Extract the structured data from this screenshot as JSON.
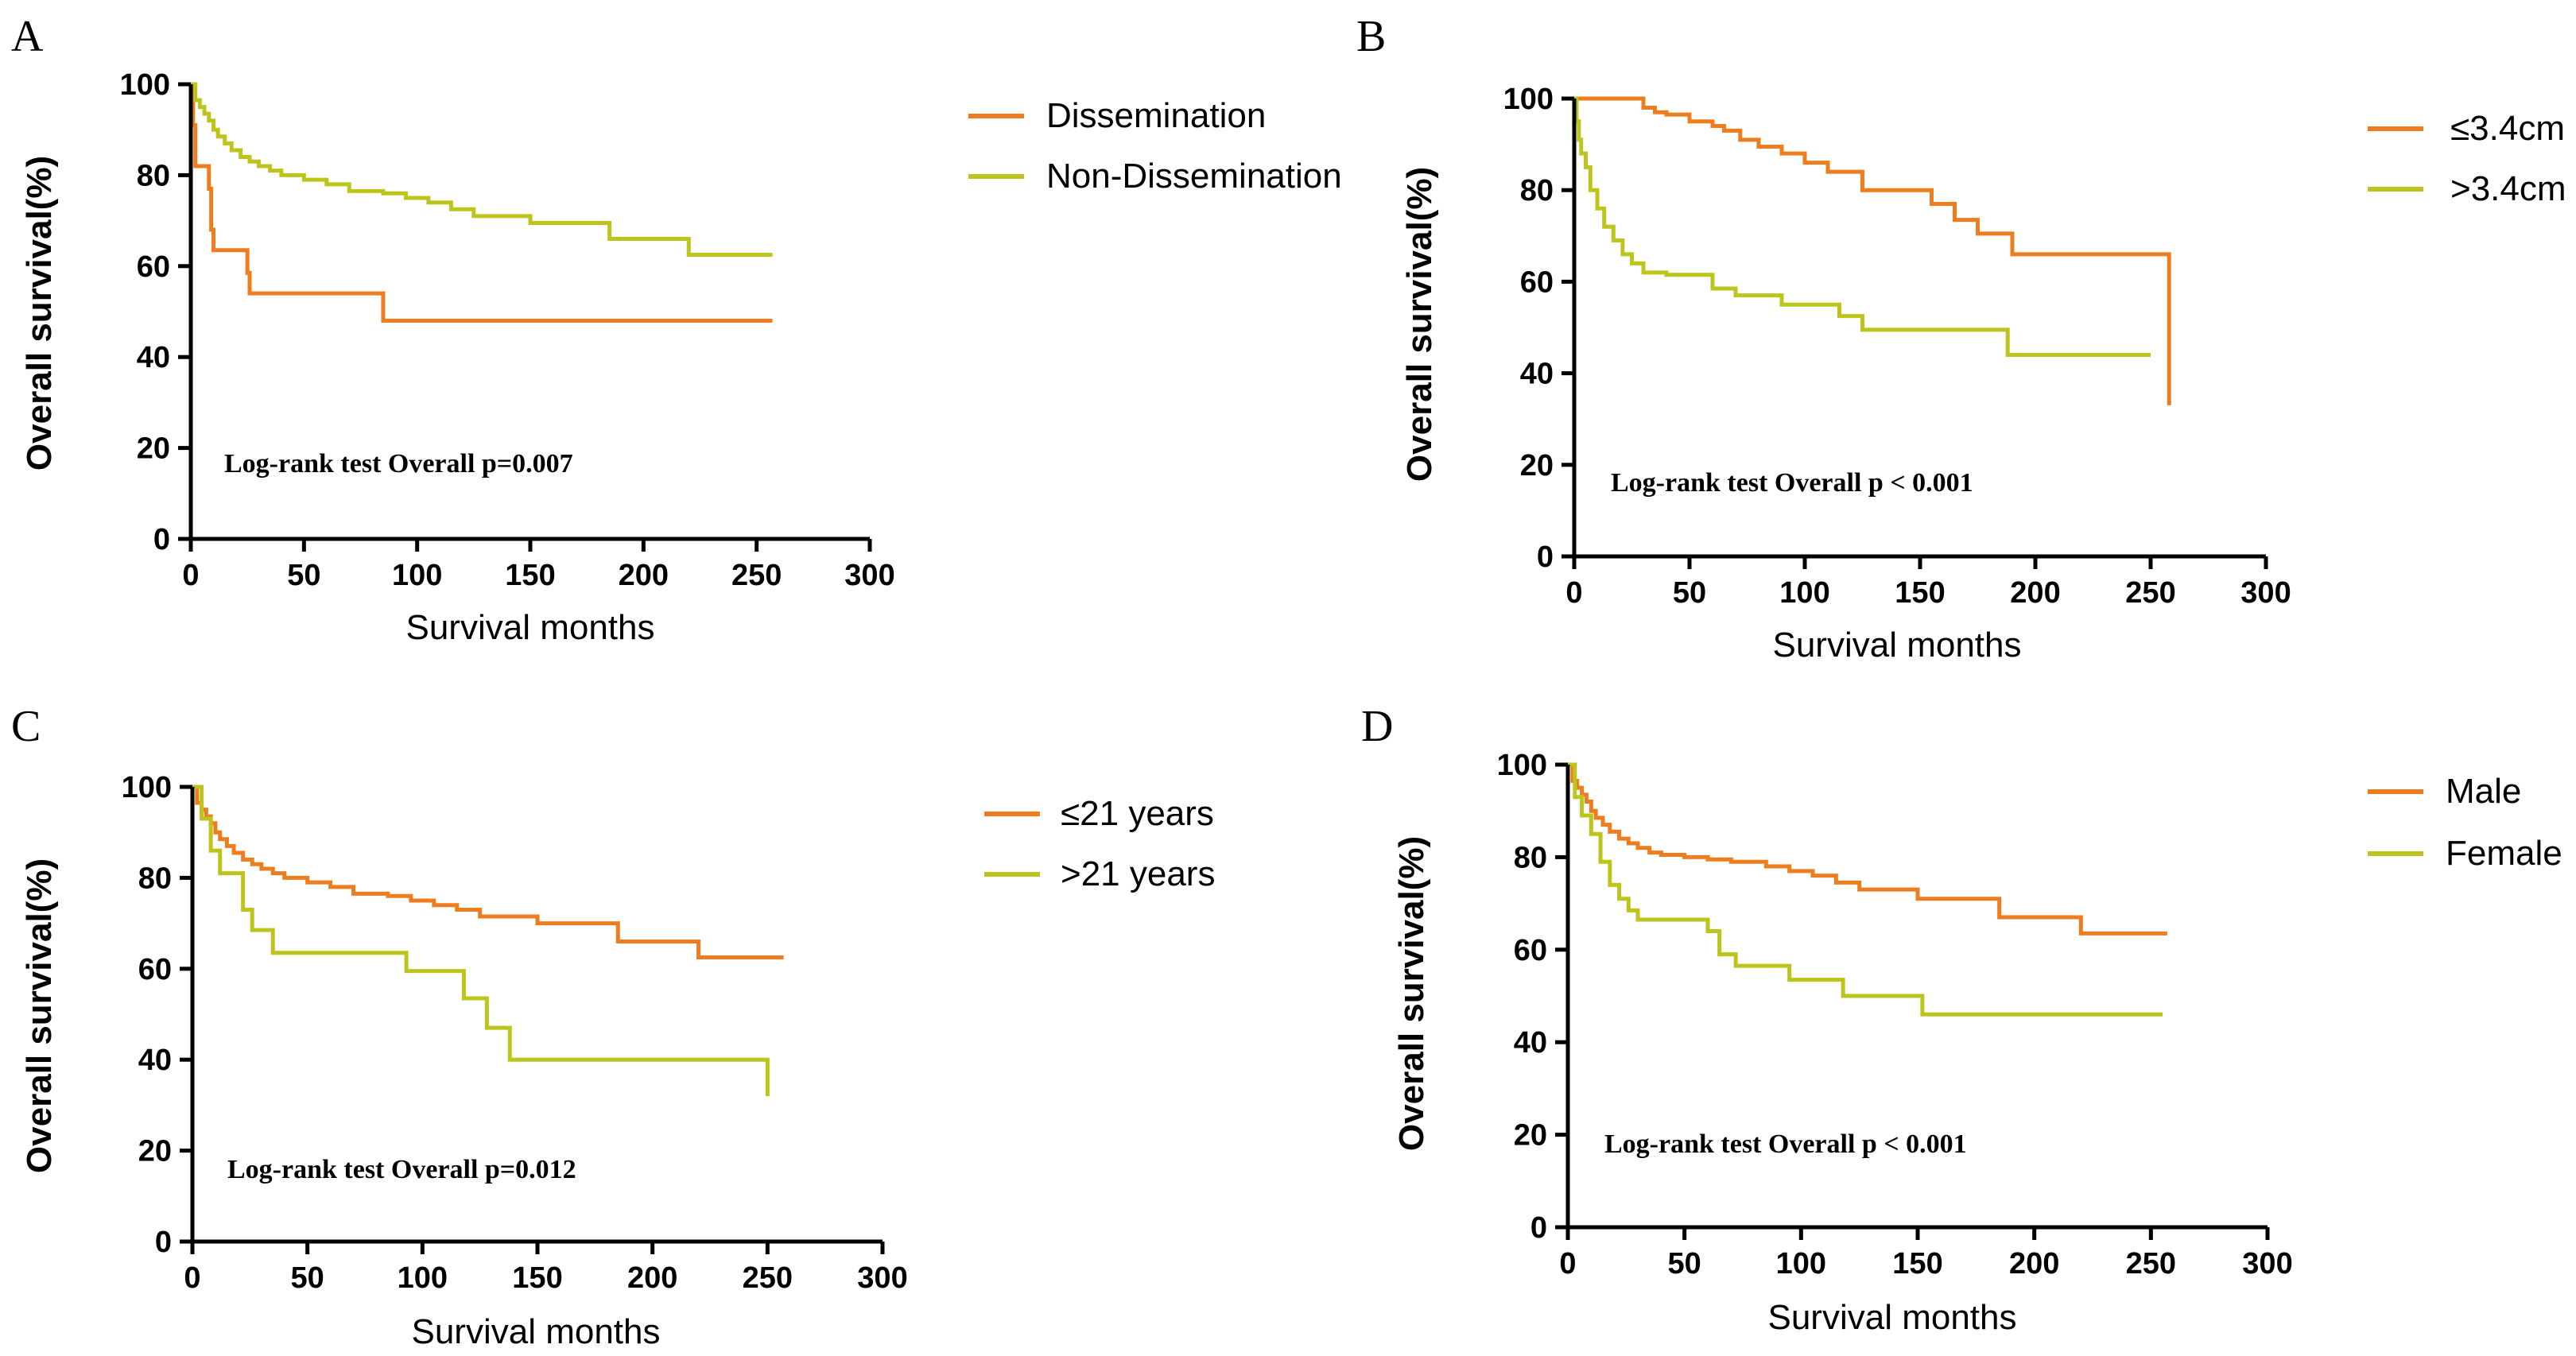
{
  "chart_data": [
    {
      "panel": "A",
      "type": "line",
      "xlabel": "Survival months",
      "ylabel": "Overall survival(%)",
      "xlim": [
        0,
        300
      ],
      "ylim": [
        0,
        100
      ],
      "xticks": [
        0,
        50,
        100,
        150,
        200,
        250,
        300
      ],
      "yticks": [
        0,
        20,
        40,
        60,
        80,
        100
      ],
      "annotation": "Log-rank test Overall p=0.007",
      "series": [
        {
          "name": "Dissemination",
          "color": "#ee7d1f",
          "x": [
            0,
            1,
            2,
            8,
            9,
            10,
            25,
            26,
            85,
            257
          ],
          "y": [
            100,
            91,
            82,
            77,
            68,
            63.5,
            58.5,
            54,
            48,
            48
          ]
        },
        {
          "name": "Non-Dissemination",
          "color": "#bdc51c",
          "x": [
            0,
            2,
            4,
            6,
            8,
            10,
            12,
            15,
            18,
            22,
            26,
            30,
            35,
            40,
            50,
            60,
            70,
            85,
            95,
            105,
            115,
            125,
            150,
            185,
            220,
            257
          ],
          "y": [
            100,
            96.5,
            95,
            93.5,
            92,
            90,
            88.5,
            87,
            85.5,
            84,
            83,
            82,
            81,
            80,
            79,
            78,
            76.5,
            76,
            75,
            74,
            72.5,
            71,
            69.5,
            66,
            62.5,
            62.5
          ]
        }
      ]
    },
    {
      "panel": "B",
      "type": "line",
      "xlabel": "Survival months",
      "ylabel": "Overall survival(%)",
      "xlim": [
        0,
        300
      ],
      "ylim": [
        0,
        100
      ],
      "xticks": [
        0,
        50,
        100,
        150,
        200,
        250,
        300
      ],
      "yticks": [
        0,
        20,
        40,
        60,
        80,
        100
      ],
      "annotation": "Log-rank test Overall p < 0.001",
      "series": [
        {
          "name": "≤3.4cm",
          "color": "#ee7d1f",
          "x": [
            0,
            30,
            35,
            40,
            50,
            60,
            65,
            72,
            80,
            90,
            100,
            110,
            125,
            155,
            165,
            175,
            190,
            257,
            258
          ],
          "y": [
            100,
            98,
            97,
            96.5,
            95,
            94,
            93,
            91,
            89.5,
            88,
            86,
            84,
            80,
            77,
            73.5,
            70.5,
            66,
            66,
            33
          ]
        },
        {
          "name": ">3.4cm",
          "color": "#bdc51c",
          "x": [
            0,
            1,
            2,
            3,
            5,
            7,
            10,
            13,
            17,
            21,
            25,
            30,
            40,
            60,
            70,
            90,
            115,
            125,
            188,
            250
          ],
          "y": [
            100,
            95,
            91,
            88,
            85,
            80,
            76,
            72,
            69,
            66,
            64,
            62,
            61.5,
            58.5,
            57,
            55,
            52.5,
            49.5,
            44,
            44
          ]
        }
      ]
    },
    {
      "panel": "C",
      "type": "line",
      "xlabel": "Survival months",
      "ylabel": "Overall survival(%)",
      "xlim": [
        0,
        300
      ],
      "ylim": [
        0,
        100
      ],
      "xticks": [
        0,
        50,
        100,
        150,
        200,
        250,
        300
      ],
      "yticks": [
        0,
        20,
        40,
        60,
        80,
        100
      ],
      "annotation": "Log-rank test Overall p=0.012",
      "series": [
        {
          "name": "≤21 years",
          "color": "#ee7d1f",
          "x": [
            0,
            2,
            4,
            6,
            8,
            10,
            12,
            15,
            18,
            22,
            26,
            30,
            35,
            40,
            50,
            60,
            70,
            85,
            95,
            105,
            115,
            125,
            150,
            185,
            220,
            257
          ],
          "y": [
            100,
            96.5,
            95,
            93.5,
            92,
            90,
            88.5,
            87,
            85.5,
            84,
            83,
            82,
            81,
            80,
            79,
            78,
            76.5,
            76,
            75,
            74,
            73,
            71.5,
            70,
            66,
            62.5,
            62.5
          ]
        },
        {
          "name": ">21 years",
          "color": "#bdc51c",
          "x": [
            0,
            4,
            8,
            12,
            22,
            26,
            35,
            93,
            118,
            128,
            138,
            250
          ],
          "y": [
            100,
            93,
            86,
            81,
            73,
            68.5,
            63.5,
            59.5,
            53.5,
            47,
            40,
            32
          ]
        }
      ]
    },
    {
      "panel": "D",
      "type": "line",
      "xlabel": "Survival months",
      "ylabel": "Overall survival(%)",
      "xlim": [
        0,
        300
      ],
      "ylim": [
        0,
        100
      ],
      "xticks": [
        0,
        50,
        100,
        150,
        200,
        250,
        300
      ],
      "yticks": [
        0,
        20,
        40,
        60,
        80,
        100
      ],
      "annotation": "Log-rank test Overall p < 0.001",
      "series": [
        {
          "name": "Male",
          "color": "#ee7d1f",
          "x": [
            0,
            2,
            4,
            6,
            8,
            10,
            12,
            15,
            18,
            22,
            26,
            30,
            35,
            40,
            50,
            60,
            70,
            85,
            95,
            105,
            115,
            125,
            150,
            185,
            220,
            257
          ],
          "y": [
            100,
            96.5,
            95,
            93.5,
            92,
            90,
            88.5,
            87,
            85.5,
            84,
            83,
            82,
            81,
            80.5,
            80,
            79.5,
            79,
            78,
            77,
            76,
            74.5,
            73,
            71,
            67,
            63.5,
            63.5
          ]
        },
        {
          "name": "Female",
          "color": "#bdc51c",
          "x": [
            0,
            3,
            6,
            10,
            14,
            18,
            22,
            26,
            30,
            60,
            65,
            72,
            95,
            118,
            152,
            255
          ],
          "y": [
            100,
            93,
            89,
            85,
            79,
            74,
            71,
            68.5,
            66.5,
            64,
            59,
            56.5,
            53.5,
            50,
            46,
            46
          ]
        }
      ]
    }
  ]
}
